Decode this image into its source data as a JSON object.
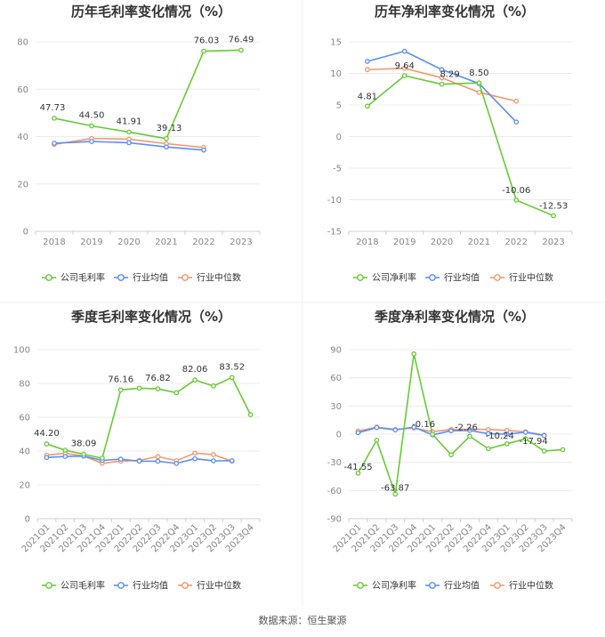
{
  "source": "数据来源：恒生聚源",
  "chart_data": [
    {
      "type": "line",
      "title": "历年毛利率变化情况（%）",
      "categories": [
        "2018",
        "2019",
        "2020",
        "2021",
        "2022",
        "2023"
      ],
      "ylim": [
        0,
        80
      ],
      "yticks": [
        0,
        20,
        40,
        60,
        80
      ],
      "grid": true,
      "legend": "bottom",
      "series": [
        {
          "name": "公司毛利率",
          "color": "#66cc33",
          "values": [
            47.73,
            44.5,
            41.91,
            39.13,
            76.03,
            76.49
          ],
          "labels": [
            "47.73",
            "44.50",
            "41.91",
            "39.13",
            "76.03",
            "76.49"
          ]
        },
        {
          "name": "行业均值",
          "color": "#5b8ff9",
          "values": [
            37.2,
            37.9,
            37.4,
            35.6,
            34.3,
            null
          ]
        },
        {
          "name": "行业中位数",
          "color": "#f7966b",
          "values": [
            36.7,
            39.2,
            38.9,
            37.0,
            35.4,
            null
          ]
        }
      ]
    },
    {
      "type": "line",
      "title": "历年净利率变化情况（%）",
      "categories": [
        "2018",
        "2019",
        "2020",
        "2021",
        "2022",
        "2023"
      ],
      "ylim": [
        -15,
        15
      ],
      "yticks": [
        -15,
        -10,
        -5,
        0,
        5,
        10,
        15
      ],
      "grid": true,
      "legend": "bottom",
      "series": [
        {
          "name": "公司净利率",
          "color": "#66cc33",
          "values": [
            4.81,
            9.64,
            8.29,
            8.5,
            -10.06,
            -12.53
          ],
          "labels": [
            "4.81",
            "9.64",
            "8.29",
            "8.50",
            "-10.06",
            "-12.53"
          ]
        },
        {
          "name": "行业均值",
          "color": "#5b8ff9",
          "values": [
            11.9,
            13.5,
            10.6,
            8.4,
            2.3,
            null
          ]
        },
        {
          "name": "行业中位数",
          "color": "#f7966b",
          "values": [
            10.6,
            10.8,
            9.3,
            7.0,
            5.6,
            null
          ]
        }
      ]
    },
    {
      "type": "line",
      "title": "季度毛利率变化情况（%）",
      "categories": [
        "2021Q1",
        "2021Q2",
        "2021Q3",
        "2021Q4",
        "2022Q1",
        "2022Q2",
        "2022Q3",
        "2022Q4",
        "2023Q1",
        "2023Q2",
        "2023Q3",
        "2023Q4"
      ],
      "ylim": [
        0,
        100
      ],
      "yticks": [
        0,
        20,
        40,
        60,
        80,
        100
      ],
      "grid": true,
      "legend": "bottom",
      "series": [
        {
          "name": "公司毛利率",
          "color": "#66cc33",
          "values": [
            44.2,
            40.5,
            38.09,
            35.8,
            76.16,
            77.2,
            76.82,
            74.5,
            82.06,
            78.5,
            83.52,
            61.5
          ],
          "labels": [
            "44.20",
            "",
            "38.09",
            "",
            "76.16",
            "",
            "76.82",
            "",
            "82.06",
            "",
            "83.52",
            ""
          ]
        },
        {
          "name": "行业均值",
          "color": "#5b8ff9",
          "values": [
            36.2,
            36.8,
            37.0,
            34.5,
            35.2,
            34.0,
            34.0,
            32.7,
            35.5,
            34.2,
            34.3,
            null
          ]
        },
        {
          "name": "行业中位数",
          "color": "#f7966b",
          "values": [
            37.6,
            38.7,
            37.0,
            32.8,
            34.0,
            34.5,
            36.7,
            34.3,
            38.8,
            37.9,
            34.0,
            null
          ]
        }
      ]
    },
    {
      "type": "line",
      "title": "季度净利率变化情况（%）",
      "categories": [
        "2021Q1",
        "2021Q2",
        "2021Q3",
        "2021Q4",
        "2022Q1",
        "2022Q2",
        "2022Q3",
        "2022Q4",
        "2023Q1",
        "2023Q2",
        "2023Q3",
        "2023Q4"
      ],
      "ylim": [
        -90,
        90
      ],
      "yticks": [
        -90,
        -60,
        -30,
        0,
        30,
        60,
        90
      ],
      "grid": true,
      "legend": "bottom",
      "series": [
        {
          "name": "公司净利率",
          "color": "#66cc33",
          "values": [
            -41.55,
            -6.5,
            -63.87,
            85.5,
            -0.16,
            -22.0,
            -2.26,
            -15.5,
            -10.24,
            -5.0,
            -17.94,
            -16.5
          ],
          "labels": [
            "-41.55",
            "",
            "-63.87",
            "",
            "-0.16",
            "",
            "-2.26",
            "",
            "-10.24",
            "",
            "-17.94",
            ""
          ]
        },
        {
          "name": "行业均值",
          "color": "#5b8ff9",
          "values": [
            1.5,
            7.0,
            4.5,
            7.5,
            -0.7,
            3.6,
            4.0,
            0.5,
            0.0,
            2.0,
            -1.5,
            null
          ]
        },
        {
          "name": "行业中位数",
          "color": "#f7966b",
          "values": [
            3.3,
            7.5,
            5.0,
            6.5,
            2.7,
            5.0,
            5.2,
            5.0,
            4.0,
            2.5,
            -1.0,
            null
          ]
        }
      ]
    }
  ]
}
